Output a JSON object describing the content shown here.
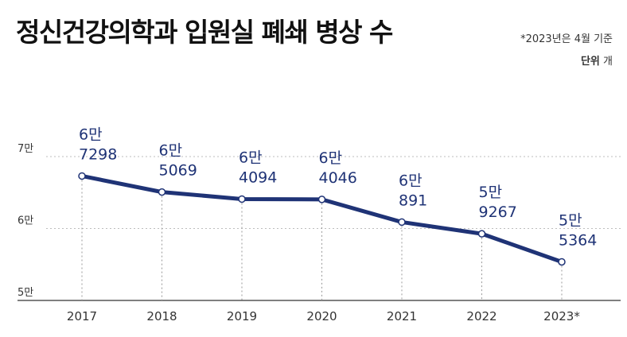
{
  "title": "정신건강의학과 입원실 폐쇄 병상 수",
  "note": "*2023년은 4월 기준",
  "unit": {
    "label": "단위",
    "value": "개"
  },
  "colors": {
    "line": "#1f3376",
    "label": "#1f3376",
    "grid": "#bdbdbd",
    "axis": "#333333"
  },
  "chart_data": {
    "type": "line",
    "categories": [
      "2017",
      "2018",
      "2019",
      "2020",
      "2021",
      "2022",
      "2023*"
    ],
    "series": [
      {
        "values": [
          67298,
          65069,
          64094,
          64046,
          60891,
          59267,
          55364
        ]
      }
    ],
    "data_labels": [
      [
        "6만",
        "7298"
      ],
      [
        "6만",
        "5069"
      ],
      [
        "6만",
        "4094"
      ],
      [
        "6만",
        "4046"
      ],
      [
        "6만",
        "891"
      ],
      [
        "5만",
        "9267"
      ],
      [
        "5만",
        "5364"
      ]
    ],
    "y_ticks": [
      {
        "value": 50000,
        "label": "5만"
      },
      {
        "value": 60000,
        "label": "6만"
      },
      {
        "value": 70000,
        "label": "7만"
      }
    ],
    "ylim": [
      50000,
      70000
    ]
  }
}
